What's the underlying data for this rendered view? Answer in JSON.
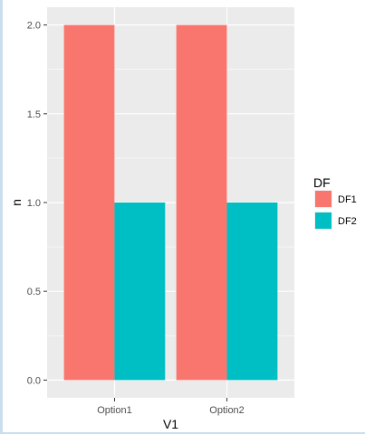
{
  "chart_data": {
    "type": "bar",
    "categories": [
      "Option1",
      "Option2"
    ],
    "series": [
      {
        "name": "DF1",
        "values": [
          2.0,
          2.0
        ],
        "color": "#F8766D"
      },
      {
        "name": "DF2",
        "values": [
          1.0,
          1.0
        ],
        "color": "#00BFC4"
      }
    ],
    "xlabel": "V1",
    "ylabel": "n",
    "ylim": [
      0,
      2.0
    ],
    "yticks": [
      "0.0",
      "0.5",
      "1.0",
      "1.5",
      "2.0"
    ],
    "ytick_values": [
      0,
      0.5,
      1.0,
      1.5,
      2.0
    ],
    "grid": true,
    "panel_background": "#EBEBEB",
    "grid_color": "#FFFFFF",
    "legend": {
      "title": "DF",
      "placement": "right"
    }
  }
}
